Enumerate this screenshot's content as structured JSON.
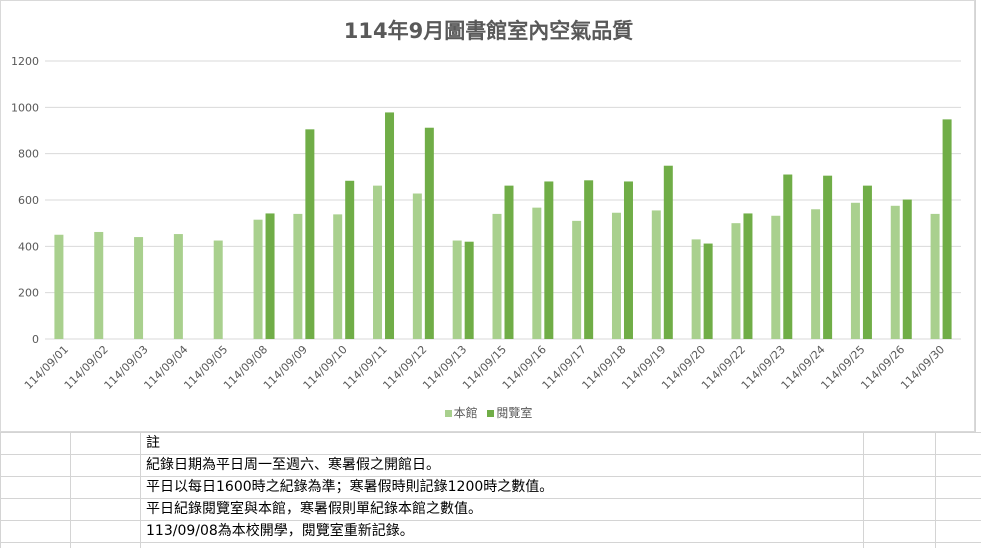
{
  "notes": {
    "heading": "註",
    "lines": [
      "紀錄日期為平日周一至週六、寒暑假之開館日。",
      "平日以每日1600時之紀錄為準；寒暑假時則記錄1200時之數值。",
      "平日紀錄閱覽室與本館，寒暑假則單紀錄本館之數值。",
      "113/09/08為本校開學，閱覽室重新記錄。"
    ]
  },
  "chart_data": {
    "type": "bar",
    "title": "114年9月圖書館室內空氣品質",
    "categories": [
      "114/09/01",
      "114/09/02",
      "114/09/03",
      "114/09/04",
      "114/09/05",
      "114/09/08",
      "114/09/09",
      "114/09/10",
      "114/09/11",
      "114/09/12",
      "114/09/13",
      "114/09/15",
      "114/09/16",
      "114/09/17",
      "114/09/18",
      "114/09/19",
      "114/09/20",
      "114/09/22",
      "114/09/23",
      "114/09/24",
      "114/09/25",
      "114/09/26",
      "114/09/30"
    ],
    "series": [
      {
        "name": "本館",
        "color": "#a9d08e",
        "values": [
          450,
          462,
          440,
          453,
          425,
          515,
          540,
          538,
          662,
          628,
          425,
          540,
          567,
          510,
          545,
          555,
          430,
          500,
          532,
          560,
          588,
          575,
          540
        ]
      },
      {
        "name": "閱覽室",
        "color": "#70ad47",
        "values": [
          null,
          null,
          null,
          null,
          null,
          542,
          905,
          683,
          978,
          912,
          420,
          662,
          680,
          685,
          680,
          748,
          412,
          542,
          710,
          705,
          662,
          602,
          948
        ]
      }
    ],
    "ylim": [
      0,
      1200
    ],
    "yticks": [
      "0",
      "200",
      "400",
      "600",
      "800",
      "1000",
      "1200"
    ],
    "grid": true,
    "legend_position": "bottom"
  }
}
